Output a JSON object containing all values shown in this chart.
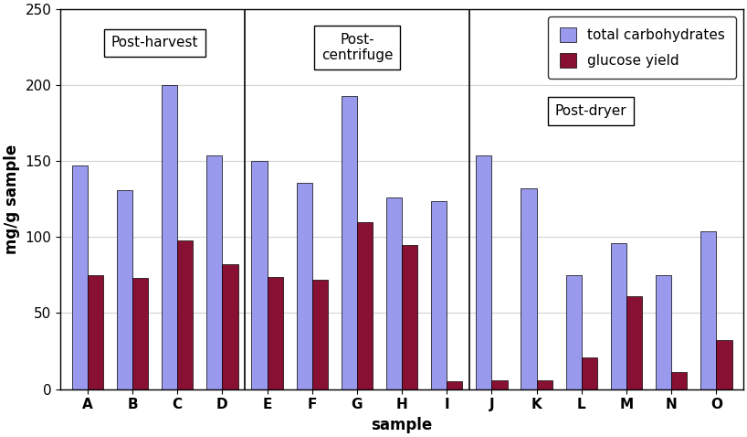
{
  "categories": [
    "A",
    "B",
    "C",
    "D",
    "E",
    "F",
    "G",
    "H",
    "I",
    "J",
    "K",
    "L",
    "M",
    "N",
    "O"
  ],
  "total_carbs": [
    147,
    131,
    200,
    154,
    150,
    136,
    193,
    126,
    124,
    154,
    132,
    75,
    96,
    75,
    104
  ],
  "glucose_yield": [
    75,
    73,
    98,
    82,
    74,
    72,
    110,
    95,
    5,
    6,
    6,
    21,
    61,
    11,
    32
  ],
  "bar_color_carbs": "#9999EE",
  "bar_color_glucose": "#881133",
  "bar_edgecolor": "#000000",
  "ylim": [
    0,
    250
  ],
  "yticks": [
    0,
    50,
    100,
    150,
    200,
    250
  ],
  "ylabel": "mg/g sample",
  "xlabel": "sample",
  "legend_carbs": "total carbohydrates",
  "legend_glucose": "glucose yield",
  "post_harvest_label": "Post-harvest",
  "post_centrifuge_label": "Post-\ncentrifuge",
  "post_dryer_label": "Post-dryer",
  "bar_width": 0.35,
  "axis_fontsize": 12,
  "tick_fontsize": 11,
  "legend_fontsize": 11,
  "sep1_idx": 3.5,
  "sep2_idx": 8.5
}
